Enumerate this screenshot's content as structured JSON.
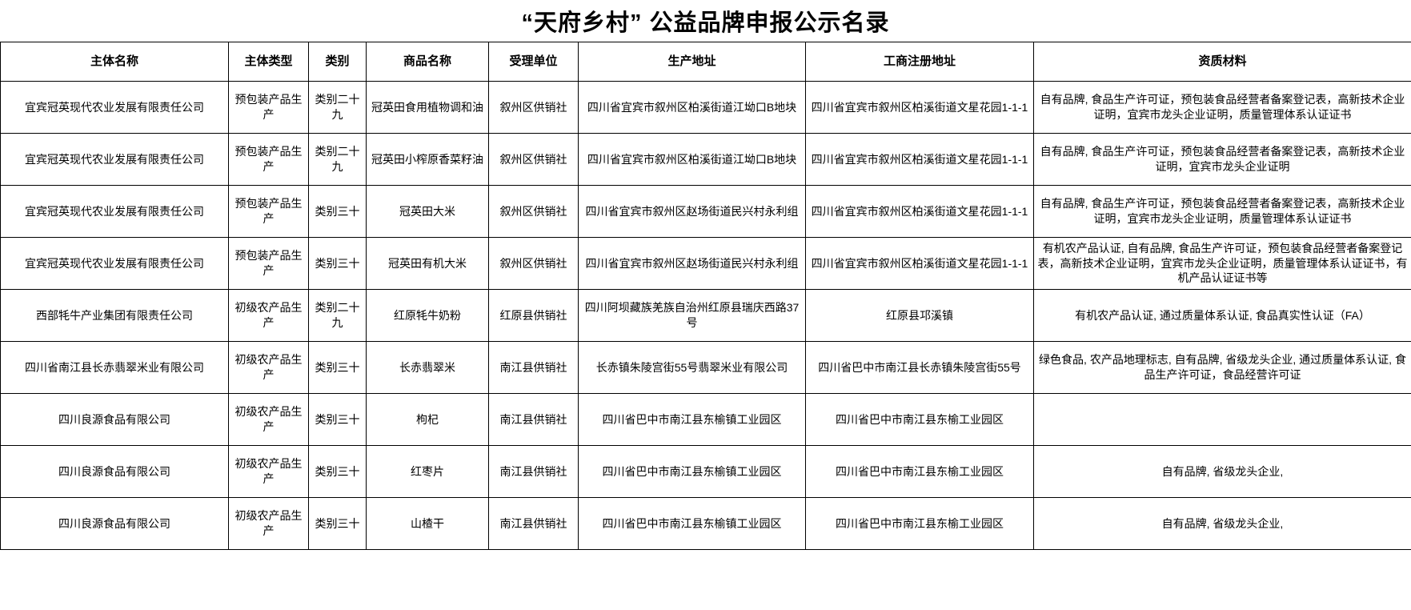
{
  "title": "“天府乡村” 公益品牌申报公示名录",
  "table": {
    "headers": [
      "主体名称",
      "主体类型",
      "类别",
      "商品名称",
      "受理单位",
      "生产地址",
      "工商注册地址",
      "资质材料"
    ],
    "rows": [
      [
        "宜宾冠英现代农业发展有限责任公司",
        "预包装产品生产",
        "类别二十九",
        "冠英田食用植物调和油",
        "叙州区供销社",
        "四川省宜宾市叙州区柏溪街道江坳口B地块",
        "四川省宜宾市叙州区柏溪街道文星花园1-1-1",
        "自有品牌, 食品生产许可证，预包装食品经营者备案登记表，高新技术企业证明，宜宾市龙头企业证明，质量管理体系认证证书"
      ],
      [
        "宜宾冠英现代农业发展有限责任公司",
        "预包装产品生产",
        "类别二十九",
        "冠英田小榨原香菜籽油",
        "叙州区供销社",
        "四川省宜宾市叙州区柏溪街道江坳口B地块",
        "四川省宜宾市叙州区柏溪街道文星花园1-1-1",
        "自有品牌, 食品生产许可证，预包装食品经营者备案登记表，高新技术企业证明，宜宾市龙头企业证明"
      ],
      [
        "宜宾冠英现代农业发展有限责任公司",
        "预包装产品生产",
        "类别三十",
        "冠英田大米",
        "叙州区供销社",
        "四川省宜宾市叙州区赵场街道民兴村永利组",
        "四川省宜宾市叙州区柏溪街道文星花园1-1-1",
        "自有品牌, 食品生产许可证，预包装食品经营者备案登记表，高新技术企业证明，宜宾市龙头企业证明，质量管理体系认证证书"
      ],
      [
        "宜宾冠英现代农业发展有限责任公司",
        "预包装产品生产",
        "类别三十",
        "冠英田有机大米",
        "叙州区供销社",
        "四川省宜宾市叙州区赵场街道民兴村永利组",
        "四川省宜宾市叙州区柏溪街道文星花园1-1-1",
        "有机农产品认证, 自有品牌, 食品生产许可证，预包装食品经营者备案登记表，高新技术企业证明，宜宾市龙头企业证明，质量管理体系认证证书，有机产品认证证书等"
      ],
      [
        "西部牦牛产业集团有限责任公司",
        "初级农产品生产",
        "类别二十九",
        "红原牦牛奶粉",
        "红原县供销社",
        "四川阿坝藏族羌族自治州红原县瑞庆西路37号",
        "红原县邛溪镇",
        "有机农产品认证, 通过质量体系认证, 食品真实性认证（FA）"
      ],
      [
        "四川省南江县长赤翡翠米业有限公司",
        "初级农产品生产",
        "类别三十",
        "长赤翡翠米",
        "南江县供销社",
        "长赤镇朱陵宫街55号翡翠米业有限公司",
        "四川省巴中市南江县长赤镇朱陵宫街55号",
        "绿色食品, 农产品地理标志, 自有品牌, 省级龙头企业, 通过质量体系认证, 食品生产许可证，食品经营许可证"
      ],
      [
        "四川良源食品有限公司",
        "初级农产品生产",
        "类别三十",
        "枸杞",
        "南江县供销社",
        "四川省巴中市南江县东榆镇工业园区",
        "四川省巴中市南江县东榆工业园区",
        ""
      ],
      [
        "四川良源食品有限公司",
        "初级农产品生产",
        "类别三十",
        "红枣片",
        "南江县供销社",
        "四川省巴中市南江县东榆镇工业园区",
        "四川省巴中市南江县东榆工业园区",
        "自有品牌, 省级龙头企业,"
      ],
      [
        "四川良源食品有限公司",
        "初级农产品生产",
        "类别三十",
        "山楂干",
        "南江县供销社",
        "四川省巴中市南江县东榆镇工业园区",
        "四川省巴中市南江县东榆工业园区",
        "自有品牌, 省级龙头企业,"
      ]
    ]
  }
}
